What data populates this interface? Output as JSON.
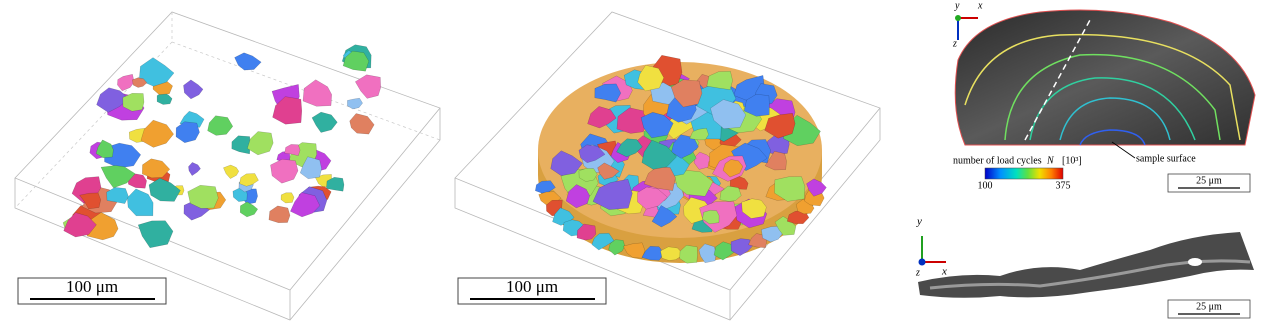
{
  "panels": [
    {
      "scale_bar": "100 μm"
    },
    {
      "scale_bar": "100 μm"
    }
  ],
  "crack_front": {
    "axes": {
      "y": "y",
      "x": "x",
      "z": "z"
    },
    "colorbar": {
      "label": "number of load cycles",
      "symbol": "N",
      "unit": "[10³]",
      "min": 100,
      "max": 375
    },
    "annotation": "sample surface",
    "scale_bar": "25 μm"
  },
  "crack_side": {
    "axes": {
      "y": "y",
      "z": "z",
      "x": "x"
    },
    "scale_bar": "25 μm"
  }
}
